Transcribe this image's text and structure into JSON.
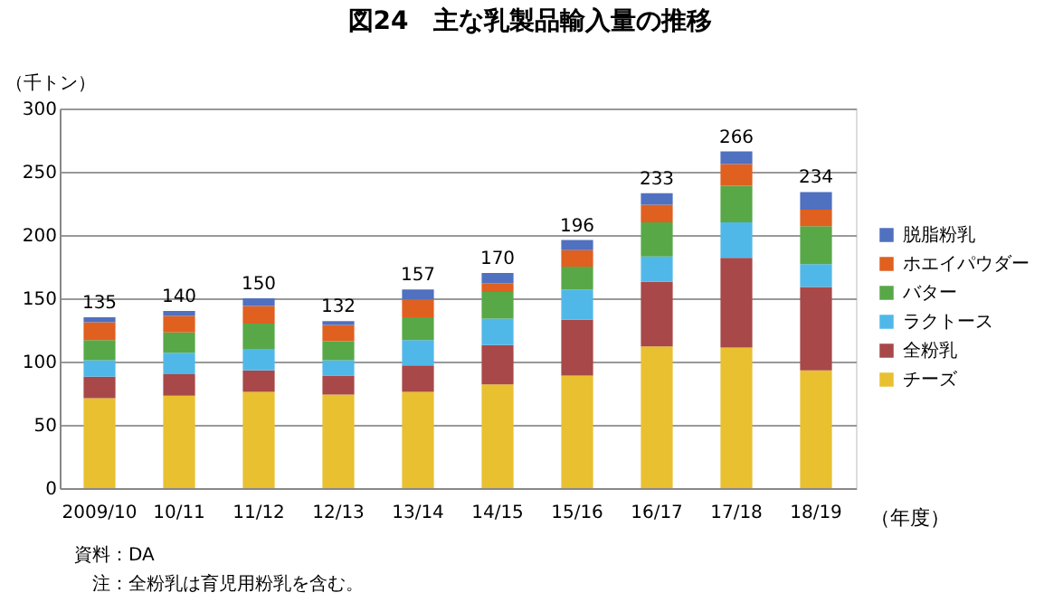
{
  "chart_data": {
    "type": "bar",
    "title": "図24　主な乳製品輸入量の推移",
    "ylabel": "（千トン）",
    "xlabel": "（年度）",
    "categories": [
      "2009/10",
      "10/11",
      "11/12",
      "12/13",
      "13/14",
      "14/15",
      "15/16",
      "16/17",
      "17/18",
      "18/19"
    ],
    "stacked": true,
    "series": [
      {
        "name": "チーズ",
        "color": "#e8c030",
        "values": [
          71,
          73,
          76,
          74,
          76,
          82,
          89,
          112,
          111,
          93
        ]
      },
      {
        "name": "全粉乳",
        "color": "#a84848",
        "values": [
          17,
          17,
          17,
          15,
          21,
          31,
          44,
          51,
          71,
          66
        ]
      },
      {
        "name": "ラクトース",
        "color": "#50b8e8",
        "values": [
          13,
          17,
          17,
          12,
          20,
          21,
          24,
          20,
          28,
          18
        ]
      },
      {
        "name": "バター",
        "color": "#58a848",
        "values": [
          16,
          16,
          20,
          15,
          18,
          21,
          18,
          27,
          29,
          30
        ]
      },
      {
        "name": "ホエイパウダー",
        "color": "#e06020",
        "values": [
          14,
          13,
          14,
          13,
          14,
          7,
          13,
          14,
          17,
          13
        ]
      },
      {
        "name": "脱脂粉乳",
        "color": "#5070c0",
        "values": [
          4,
          4,
          6,
          3,
          8,
          8,
          8,
          9,
          10,
          14
        ]
      }
    ],
    "totals": [
      "135",
      "140",
      "150",
      "132",
      "157",
      "170",
      "196",
      "233",
      "266",
      "234"
    ],
    "ylim": [
      0,
      300
    ],
    "yticks": [
      0,
      50,
      100,
      150,
      200,
      250,
      300
    ],
    "grid": "y",
    "legend": "right",
    "annotations": [
      "資料：DA",
      "注：全粉乳は育児用粉乳を含む。"
    ]
  }
}
